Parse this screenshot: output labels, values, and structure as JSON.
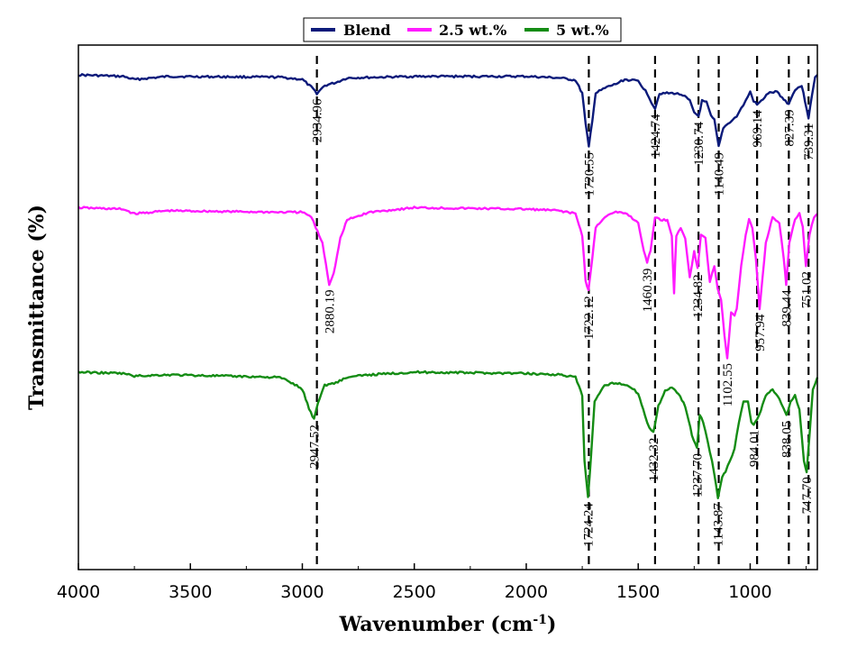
{
  "chart_data": {
    "type": "line",
    "title": "",
    "xlabel": "Wavenumber (cm",
    "xlabel_sup": "-1",
    "xlabel_tail": ")",
    "ylabel": "Transmittance (%)",
    "xlim": [
      4000,
      700
    ],
    "x_reversed": true,
    "y_ticks_shown": false,
    "grid": false,
    "legend_position": "top-center",
    "x_ticks": [
      "4000",
      "3500",
      "3000",
      "2500",
      "2000",
      "1500",
      "1000"
    ],
    "x_tick_values": [
      4000,
      3500,
      3000,
      2500,
      2000,
      1500,
      1000
    ],
    "dashed_reference_lines": [
      2934.96,
      1720.55,
      1424.74,
      1230.74,
      1140.49,
      969.14,
      827.39,
      739.31
    ],
    "series": [
      {
        "name": "Blend",
        "color": "#0b1a7a",
        "points": [
          [
            4000,
            0.06
          ],
          [
            3800,
            0.08
          ],
          [
            3750,
            0.12
          ],
          [
            3600,
            0.08
          ],
          [
            3100,
            0.09
          ],
          [
            3000,
            0.12
          ],
          [
            2960,
            0.22
          ],
          [
            2934.96,
            0.3
          ],
          [
            2900,
            0.2
          ],
          [
            2850,
            0.16
          ],
          [
            2800,
            0.1
          ],
          [
            2500,
            0.08
          ],
          [
            2000,
            0.08
          ],
          [
            1850,
            0.1
          ],
          [
            1780,
            0.13
          ],
          [
            1750,
            0.3
          ],
          [
            1735,
            0.7
          ],
          [
            1720.55,
            1.0
          ],
          [
            1705,
            0.65
          ],
          [
            1690,
            0.3
          ],
          [
            1640,
            0.22
          ],
          [
            1600,
            0.18
          ],
          [
            1560,
            0.12
          ],
          [
            1500,
            0.14
          ],
          [
            1460,
            0.3
          ],
          [
            1440,
            0.42
          ],
          [
            1424.74,
            0.5
          ],
          [
            1405,
            0.3
          ],
          [
            1380,
            0.3
          ],
          [
            1340,
            0.3
          ],
          [
            1300,
            0.32
          ],
          [
            1270,
            0.4
          ],
          [
            1250,
            0.55
          ],
          [
            1230.74,
            0.6
          ],
          [
            1215,
            0.4
          ],
          [
            1195,
            0.42
          ],
          [
            1175,
            0.6
          ],
          [
            1160,
            0.65
          ],
          [
            1140.49,
            1.0
          ],
          [
            1120,
            0.75
          ],
          [
            1100,
            0.7
          ],
          [
            1080,
            0.65
          ],
          [
            1060,
            0.6
          ],
          [
            1040,
            0.5
          ],
          [
            1020,
            0.4
          ],
          [
            1000,
            0.28
          ],
          [
            985,
            0.4
          ],
          [
            969.14,
            0.45
          ],
          [
            950,
            0.4
          ],
          [
            920,
            0.3
          ],
          [
            880,
            0.28
          ],
          [
            850,
            0.38
          ],
          [
            827.39,
            0.44
          ],
          [
            800,
            0.25
          ],
          [
            770,
            0.2
          ],
          [
            755,
            0.4
          ],
          [
            739.31,
            0.62
          ],
          [
            725,
            0.35
          ],
          [
            710,
            0.08
          ],
          [
            700,
            0.06
          ]
        ]
      },
      {
        "name": "2.5 wt.%",
        "color": "#ff1aff",
        "points": [
          [
            4000,
            0.02
          ],
          [
            3800,
            0.03
          ],
          [
            3750,
            0.06
          ],
          [
            3600,
            0.04
          ],
          [
            3100,
            0.05
          ],
          [
            3000,
            0.05
          ],
          [
            2960,
            0.08
          ],
          [
            2940,
            0.15
          ],
          [
            2910,
            0.25
          ],
          [
            2880.19,
            0.52
          ],
          [
            2860,
            0.45
          ],
          [
            2830,
            0.22
          ],
          [
            2800,
            0.1
          ],
          [
            2700,
            0.05
          ],
          [
            2500,
            0.02
          ],
          [
            2000,
            0.03
          ],
          [
            1850,
            0.04
          ],
          [
            1780,
            0.06
          ],
          [
            1750,
            0.2
          ],
          [
            1735,
            0.5
          ],
          [
            1722.12,
            0.56
          ],
          [
            1705,
            0.35
          ],
          [
            1690,
            0.15
          ],
          [
            1650,
            0.08
          ],
          [
            1600,
            0.05
          ],
          [
            1550,
            0.06
          ],
          [
            1500,
            0.12
          ],
          [
            1475,
            0.3
          ],
          [
            1460.39,
            0.38
          ],
          [
            1445,
            0.3
          ],
          [
            1425,
            0.08
          ],
          [
            1400,
            0.1
          ],
          [
            1370,
            0.1
          ],
          [
            1350,
            0.2
          ],
          [
            1340,
            0.58
          ],
          [
            1330,
            0.2
          ],
          [
            1310,
            0.15
          ],
          [
            1290,
            0.22
          ],
          [
            1270,
            0.48
          ],
          [
            1250,
            0.3
          ],
          [
            1234.82,
            0.42
          ],
          [
            1220,
            0.2
          ],
          [
            1200,
            0.22
          ],
          [
            1180,
            0.5
          ],
          [
            1160,
            0.4
          ],
          [
            1145,
            0.55
          ],
          [
            1130,
            0.62
          ],
          [
            1115,
            0.85
          ],
          [
            1102.55,
            1.0
          ],
          [
            1085,
            0.7
          ],
          [
            1070,
            0.72
          ],
          [
            1060,
            0.68
          ],
          [
            1040,
            0.4
          ],
          [
            1020,
            0.2
          ],
          [
            1005,
            0.1
          ],
          [
            990,
            0.15
          ],
          [
            975,
            0.35
          ],
          [
            957.94,
            0.68
          ],
          [
            945,
            0.48
          ],
          [
            930,
            0.25
          ],
          [
            900,
            0.08
          ],
          [
            870,
            0.12
          ],
          [
            850,
            0.35
          ],
          [
            839.44,
            0.52
          ],
          [
            825,
            0.25
          ],
          [
            800,
            0.1
          ],
          [
            780,
            0.05
          ],
          [
            765,
            0.15
          ],
          [
            751.02,
            0.4
          ],
          [
            735,
            0.2
          ],
          [
            715,
            0.08
          ],
          [
            700,
            0.06
          ]
        ]
      },
      {
        "name": "5 wt.%",
        "color": "#148c14",
        "points": [
          [
            4000,
            0.02
          ],
          [
            3800,
            0.03
          ],
          [
            3750,
            0.05
          ],
          [
            3600,
            0.04
          ],
          [
            3100,
            0.06
          ],
          [
            3050,
            0.1
          ],
          [
            3000,
            0.15
          ],
          [
            2970,
            0.3
          ],
          [
            2947.52,
            0.38
          ],
          [
            2930,
            0.25
          ],
          [
            2900,
            0.12
          ],
          [
            2850,
            0.1
          ],
          [
            2800,
            0.06
          ],
          [
            2700,
            0.04
          ],
          [
            2500,
            0.02
          ],
          [
            2000,
            0.03
          ],
          [
            1850,
            0.04
          ],
          [
            1780,
            0.06
          ],
          [
            1750,
            0.2
          ],
          [
            1740,
            0.7
          ],
          [
            1724.24,
            0.98
          ],
          [
            1710,
            0.65
          ],
          [
            1695,
            0.25
          ],
          [
            1650,
            0.12
          ],
          [
            1600,
            0.1
          ],
          [
            1550,
            0.12
          ],
          [
            1500,
            0.18
          ],
          [
            1470,
            0.35
          ],
          [
            1450,
            0.45
          ],
          [
            1432.32,
            0.48
          ],
          [
            1410,
            0.28
          ],
          [
            1380,
            0.16
          ],
          [
            1350,
            0.14
          ],
          [
            1320,
            0.18
          ],
          [
            1290,
            0.28
          ],
          [
            1260,
            0.5
          ],
          [
            1237.7,
            0.6
          ],
          [
            1225,
            0.35
          ],
          [
            1210,
            0.4
          ],
          [
            1190,
            0.55
          ],
          [
            1170,
            0.7
          ],
          [
            1143.87,
            0.98
          ],
          [
            1125,
            0.82
          ],
          [
            1110,
            0.78
          ],
          [
            1090,
            0.7
          ],
          [
            1070,
            0.6
          ],
          [
            1050,
            0.4
          ],
          [
            1030,
            0.25
          ],
          [
            1010,
            0.24
          ],
          [
            995,
            0.4
          ],
          [
            984.01,
            0.42
          ],
          [
            960,
            0.35
          ],
          [
            930,
            0.2
          ],
          [
            900,
            0.15
          ],
          [
            870,
            0.22
          ],
          [
            850,
            0.3
          ],
          [
            838.05,
            0.35
          ],
          [
            820,
            0.25
          ],
          [
            800,
            0.2
          ],
          [
            780,
            0.3
          ],
          [
            760,
            0.7
          ],
          [
            747.7,
            0.78
          ],
          [
            735,
            0.5
          ],
          [
            720,
            0.15
          ],
          [
            700,
            0.06
          ]
        ]
      }
    ],
    "peak_labels": [
      {
        "text": "2934.96",
        "x": 2934.96,
        "series": 0
      },
      {
        "text": "1720.55",
        "x": 1720.55,
        "series": 0
      },
      {
        "text": "1424.74",
        "x": 1424.74,
        "series": 0
      },
      {
        "text": "1230.74",
        "x": 1230.74,
        "series": 0
      },
      {
        "text": "1140.49",
        "x": 1140.49,
        "series": 0
      },
      {
        "text": "969.14",
        "x": 969.14,
        "series": 0
      },
      {
        "text": "827.39",
        "x": 827.39,
        "series": 0
      },
      {
        "text": "739.31",
        "x": 739.31,
        "series": 0
      },
      {
        "text": "2880.19",
        "x": 2880.19,
        "series": 1
      },
      {
        "text": "1722.12",
        "x": 1722.12,
        "series": 1
      },
      {
        "text": "1460.39",
        "x": 1460.39,
        "series": 1
      },
      {
        "text": "1234.82",
        "x": 1234.82,
        "series": 1
      },
      {
        "text": "1102.55",
        "x": 1102.55,
        "series": 1
      },
      {
        "text": "957.94",
        "x": 957.94,
        "series": 1
      },
      {
        "text": "839.44",
        "x": 839.44,
        "series": 1
      },
      {
        "text": "751.02",
        "x": 751.02,
        "series": 1
      },
      {
        "text": "2947.52",
        "x": 2947.52,
        "series": 2
      },
      {
        "text": "1724.24",
        "x": 1724.24,
        "series": 2
      },
      {
        "text": "1432.32",
        "x": 1432.32,
        "series": 2
      },
      {
        "text": "1237.70",
        "x": 1237.7,
        "series": 2
      },
      {
        "text": "1143.87",
        "x": 1143.87,
        "series": 2
      },
      {
        "text": "984.01",
        "x": 984.01,
        "series": 2
      },
      {
        "text": "838.05",
        "x": 838.05,
        "series": 2
      },
      {
        "text": "747.70",
        "x": 747.7,
        "series": 2
      }
    ]
  }
}
